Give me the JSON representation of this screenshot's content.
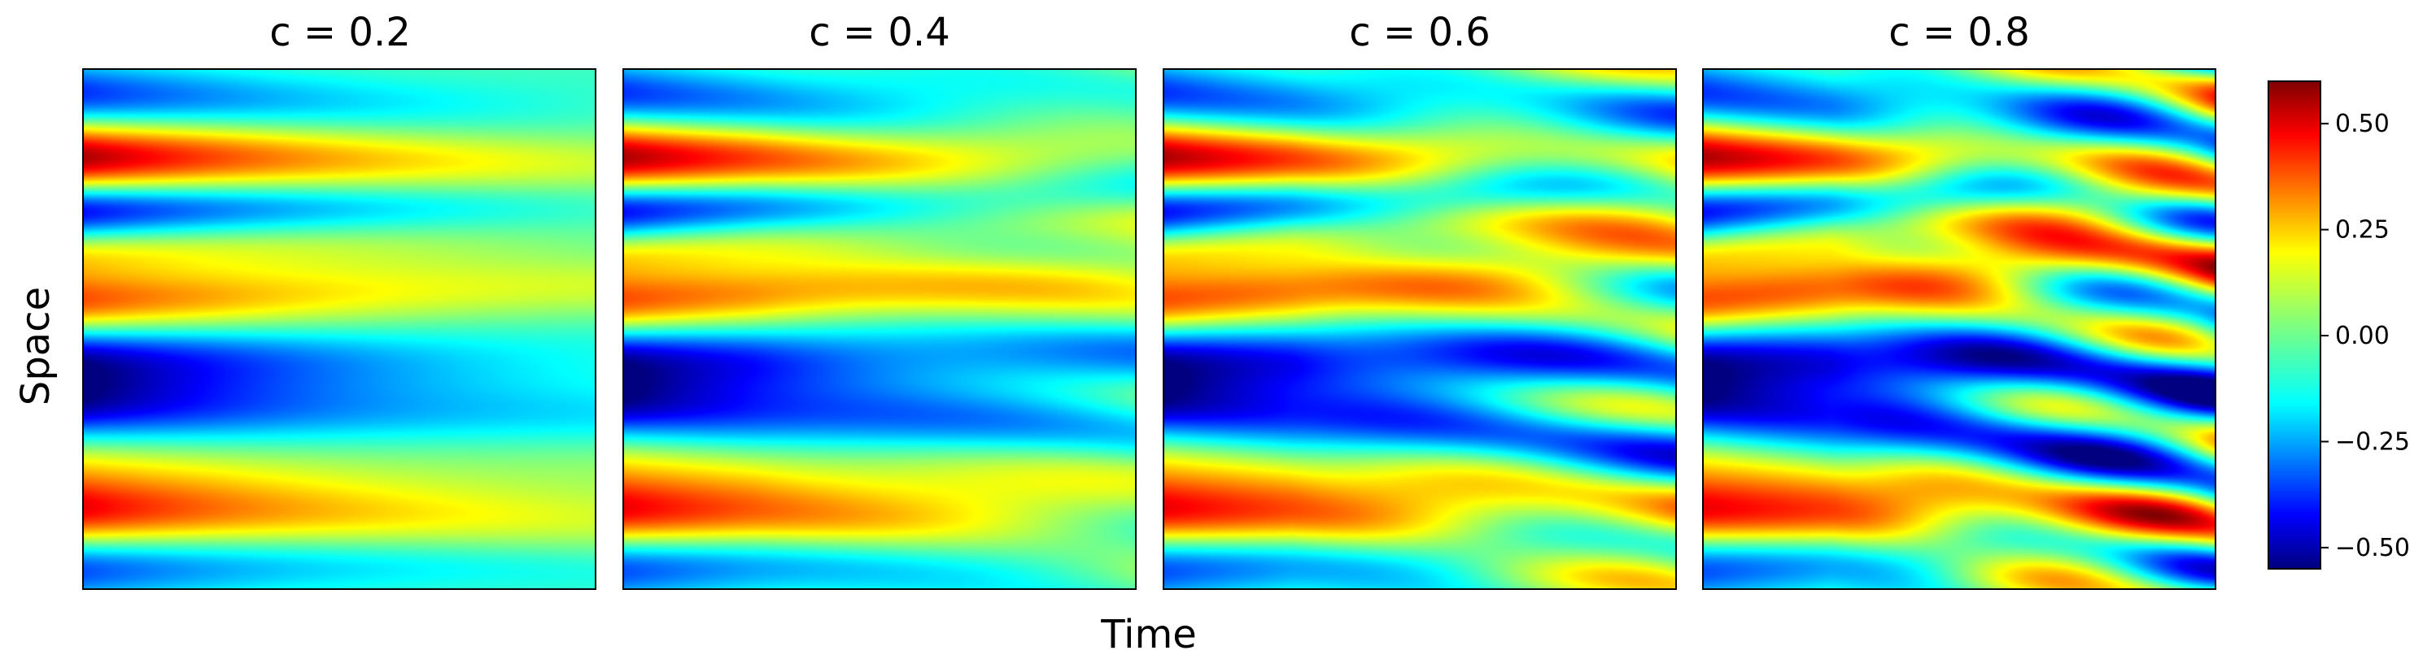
{
  "chart_data": {
    "type": "heatmap",
    "colormap": "jet",
    "xlabel": "Time",
    "ylabel": "Space",
    "panels": [
      {
        "title": "c = 0.2",
        "c": 0.2
      },
      {
        "title": "c = 0.4",
        "c": 0.4
      },
      {
        "title": "c = 0.6",
        "c": 0.6
      },
      {
        "title": "c = 0.8",
        "c": 0.8
      }
    ],
    "colorbar": {
      "range": [
        -0.55,
        0.6
      ],
      "ticks": [
        0.5,
        0.25,
        0.0,
        -0.25,
        -0.5
      ],
      "tick_labels": [
        "0.50",
        "0.25",
        "0.00",
        "−0.25",
        "−0.50"
      ]
    }
  }
}
